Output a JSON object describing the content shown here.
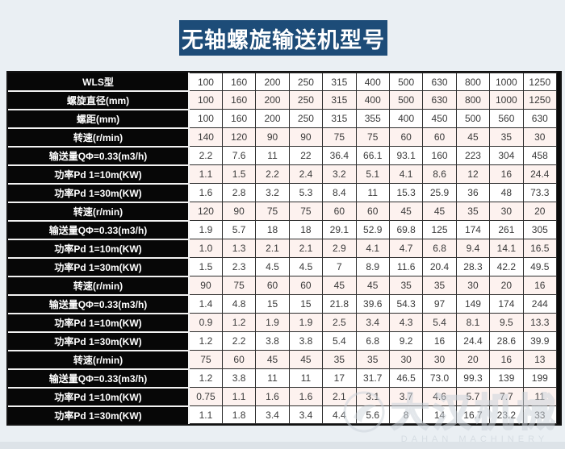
{
  "page": {
    "title": "无轴螺旋输送机型号"
  },
  "watermark": {
    "cn": "大汉机械",
    "en": "DAHAN MACHINERY"
  },
  "colors": {
    "title_bg": "#1d4c78",
    "page_bg": "#eaeff3",
    "label_bg": "#070707",
    "row_tint": "#fdf2ef"
  },
  "table": {
    "rows": [
      {
        "label": "WLS型",
        "values": [
          "100",
          "160",
          "200",
          "250",
          "315",
          "400",
          "500",
          "630",
          "800",
          "1000",
          "1250"
        ]
      },
      {
        "label": "螺旋直径(mm)",
        "values": [
          "100",
          "160",
          "200",
          "250",
          "315",
          "400",
          "500",
          "630",
          "800",
          "1000",
          "1250"
        ]
      },
      {
        "label": "螺距(mm)",
        "values": [
          "100",
          "160",
          "200",
          "250",
          "315",
          "355",
          "400",
          "450",
          "500",
          "560",
          "630"
        ]
      },
      {
        "label": "转速(r/min)",
        "values": [
          "140",
          "120",
          "90",
          "90",
          "75",
          "75",
          "60",
          "60",
          "45",
          "35",
          "30"
        ]
      },
      {
        "label": "输送量QΦ=0.33(m3/h)",
        "values": [
          "2.2",
          "7.6",
          "11",
          "22",
          "36.4",
          "66.1",
          "93.1",
          "160",
          "223",
          "304",
          "458"
        ]
      },
      {
        "label": "功率Pd 1=10m(KW)",
        "values": [
          "1.1",
          "1.5",
          "2.2",
          "2.4",
          "3.2",
          "5.1",
          "4.1",
          "8.6",
          "12",
          "16",
          "24.4"
        ]
      },
      {
        "label": "功率Pd 1=30m(KW)",
        "values": [
          "1.6",
          "2.8",
          "3.2",
          "5.3",
          "8.4",
          "11",
          "15.3",
          "25.9",
          "36",
          "48",
          "73.3"
        ]
      },
      {
        "label": "转速(r/min)",
        "values": [
          "120",
          "90",
          "75",
          "75",
          "60",
          "60",
          "45",
          "45",
          "35",
          "30",
          "20"
        ]
      },
      {
        "label": "输送量QΦ=0.33(m3/h)",
        "values": [
          "1.9",
          "5.7",
          "18",
          "18",
          "29.1",
          "52.9",
          "69.8",
          "125",
          "174",
          "261",
          "305"
        ]
      },
      {
        "label": "功率Pd 1=10m(KW)",
        "values": [
          "1.0",
          "1.3",
          "2.1",
          "2.1",
          "2.9",
          "4.1",
          "4.7",
          "6.8",
          "9.4",
          "14.1",
          "16.5"
        ]
      },
      {
        "label": "功率Pd 1=30m(KW)",
        "values": [
          "1.5",
          "2.3",
          "4.5",
          "4.5",
          "7",
          "8.9",
          "11.6",
          "20.4",
          "28.3",
          "42.2",
          "49.5"
        ]
      },
      {
        "label": "转速(r/min)",
        "values": [
          "90",
          "75",
          "60",
          "60",
          "45",
          "45",
          "35",
          "35",
          "30",
          "20",
          "16"
        ]
      },
      {
        "label": "输送量QΦ=0.33(m3/h)",
        "values": [
          "1.4",
          "4.8",
          "15",
          "15",
          "21.8",
          "39.6",
          "54.3",
          "97",
          "149",
          "174",
          "244"
        ]
      },
      {
        "label": "功率Pd 1=10m(KW)",
        "values": [
          "0.9",
          "1.2",
          "1.9",
          "1.9",
          "2.5",
          "3.4",
          "4.3",
          "5.4",
          "8.1",
          "9.5",
          "13.3"
        ]
      },
      {
        "label": "功率Pd 1=30m(KW)",
        "values": [
          "1.2",
          "2.2",
          "3.8",
          "3.8",
          "5.4",
          "6.8",
          "9.2",
          "16",
          "24.4",
          "28.6",
          "39.9"
        ]
      },
      {
        "label": "转速(r/min)",
        "values": [
          "75",
          "60",
          "45",
          "45",
          "35",
          "35",
          "30",
          "30",
          "20",
          "16",
          "13"
        ]
      },
      {
        "label": "输送量QΦ=0.33(m3/h)",
        "values": [
          "1.2",
          "3.8",
          "11",
          "11",
          "17",
          "31.7",
          "46.5",
          "73.0",
          "99.3",
          "139",
          "199"
        ]
      },
      {
        "label": "功率Pd 1=10m(KW)",
        "values": [
          "0.75",
          "1.1",
          "1.6",
          "1.6",
          "2.1",
          "3.1",
          "3.7",
          "4.6",
          "5.7",
          "7.7",
          "11"
        ]
      },
      {
        "label": "功率Pd 1=30m(KW)",
        "values": [
          "1.1",
          "1.8",
          "3.4",
          "3.4",
          "4.4",
          "5.6",
          "8",
          "14",
          "16.7",
          "23.2",
          "33"
        ]
      }
    ]
  }
}
